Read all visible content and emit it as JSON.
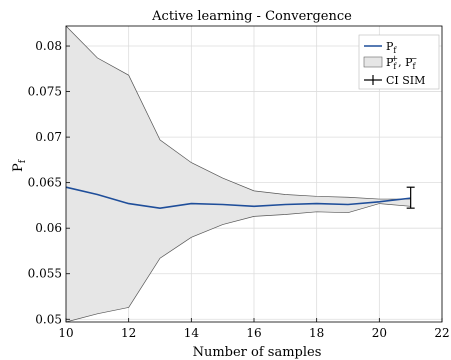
{
  "chart_data": {
    "type": "line",
    "title": "Active learning - Convergence",
    "xlabel": "Number of samples",
    "ylabel": "P",
    "ylabel_sub": "f",
    "xlim": [
      10,
      22
    ],
    "ylim": [
      0.0497,
      0.0822
    ],
    "xticks": [
      10,
      12,
      14,
      16,
      18,
      20,
      22
    ],
    "yticks": [
      0.05,
      0.055,
      0.06,
      0.065,
      0.07,
      0.075,
      0.08
    ],
    "ytick_labels": [
      "0.05",
      "0.055",
      "0.06",
      "0.065",
      "0.07",
      "0.075",
      "0.08"
    ],
    "grid": true,
    "legend_position": "top-right",
    "series": [
      {
        "name": "P",
        "name_sub": "f",
        "color": "#1f4e9a",
        "x": [
          10,
          11,
          12,
          13,
          14,
          15,
          16,
          17,
          18,
          19,
          20,
          21
        ],
        "y": [
          0.0645,
          0.0637,
          0.0627,
          0.0622,
          0.0627,
          0.0626,
          0.0624,
          0.0626,
          0.0627,
          0.0626,
          0.0629,
          0.0633
        ]
      }
    ],
    "band": {
      "name_parts": [
        "P",
        "f",
        "+",
        ", P",
        "f",
        "−"
      ],
      "fill": "#e6e6e6",
      "x": [
        10,
        11,
        12,
        13,
        14,
        15,
        16,
        17,
        18,
        19,
        20,
        21
      ],
      "upper": [
        0.0822,
        0.0787,
        0.0768,
        0.0697,
        0.0672,
        0.0655,
        0.0641,
        0.0637,
        0.0635,
        0.0634,
        0.0632,
        0.0632
      ],
      "lower": [
        0.0497,
        0.0506,
        0.0513,
        0.0567,
        0.059,
        0.0604,
        0.0613,
        0.0615,
        0.0618,
        0.0617,
        0.0627,
        0.0624
      ]
    },
    "ci": {
      "name": "CI SIM",
      "x": 21,
      "low": 0.0622,
      "high": 0.0645
    }
  }
}
